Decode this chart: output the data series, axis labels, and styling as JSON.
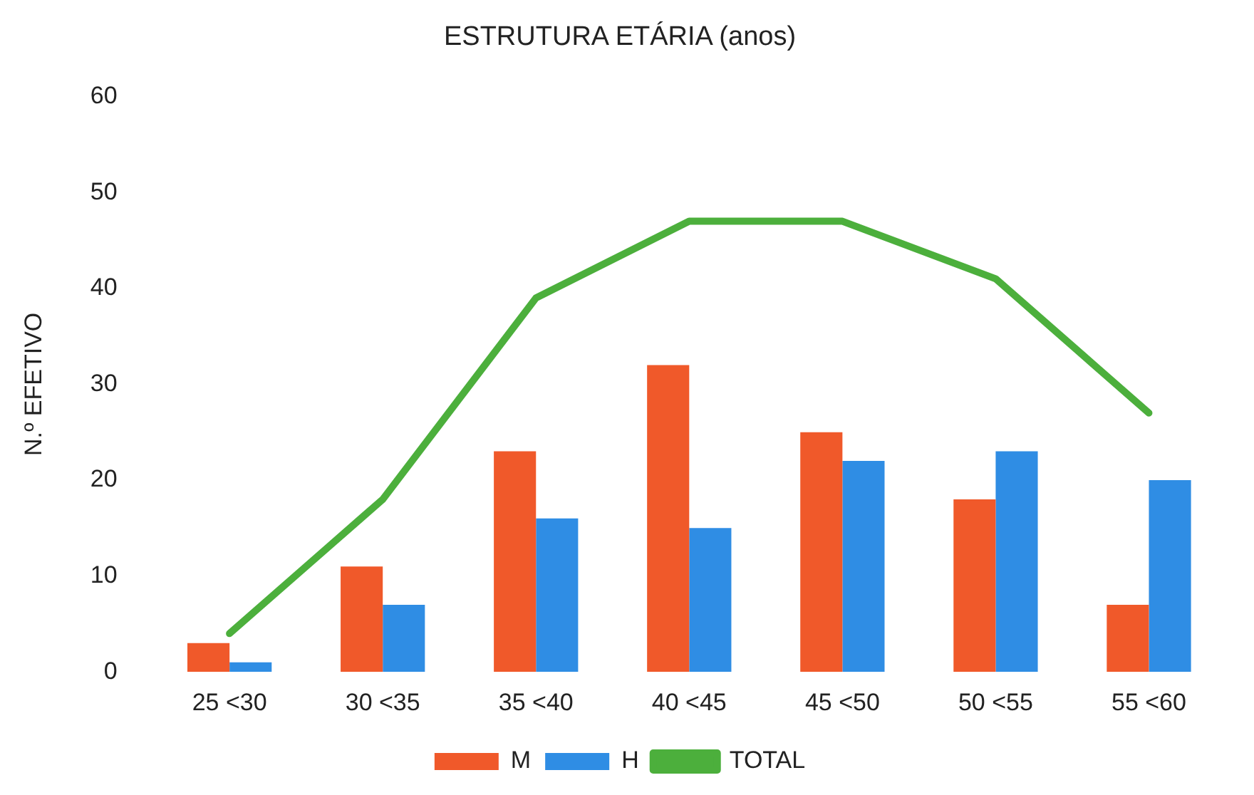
{
  "chart_data": {
    "type": "bar",
    "title": "ESTRUTURA ETÁRIA (anos)",
    "ylabel": "N.º EFETIVO",
    "categories": [
      "25 <30",
      "30 <35",
      "35 <40",
      "40 <45",
      "45 <50",
      "50 <55",
      "55 <60"
    ],
    "series": [
      {
        "name": "M",
        "color": "#f0592a",
        "values": [
          3,
          11,
          23,
          32,
          25,
          18,
          7
        ]
      },
      {
        "name": "H",
        "color": "#2f8de4",
        "values": [
          1,
          7,
          16,
          15,
          22,
          23,
          20
        ]
      },
      {
        "name": "TOTAL",
        "type": "line",
        "color": "#4caf3c",
        "values": [
          4,
          18,
          39,
          47,
          47,
          41,
          27
        ]
      }
    ],
    "ylim": [
      0,
      60
    ],
    "yticks": [
      0,
      10,
      20,
      30,
      40,
      50,
      60
    ],
    "grid": false,
    "legend": "bottom",
    "marker": "none"
  }
}
